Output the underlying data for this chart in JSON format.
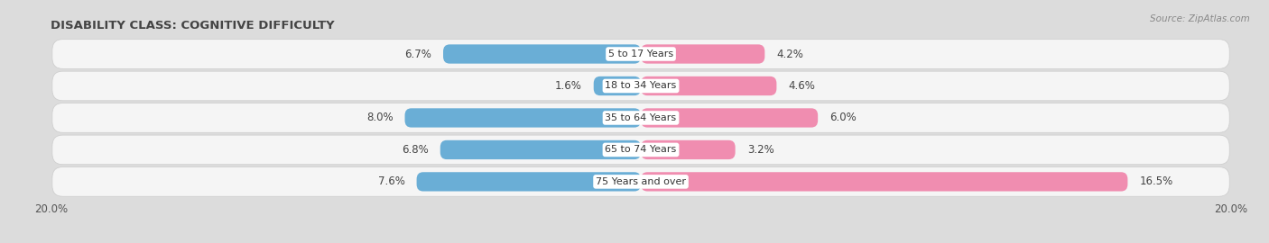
{
  "title": "DISABILITY CLASS: COGNITIVE DIFFICULTY",
  "source": "Source: ZipAtlas.com",
  "categories": [
    "5 to 17 Years",
    "18 to 34 Years",
    "35 to 64 Years",
    "65 to 74 Years",
    "75 Years and over"
  ],
  "male_values": [
    6.7,
    1.6,
    8.0,
    6.8,
    7.6
  ],
  "female_values": [
    4.2,
    4.6,
    6.0,
    3.2,
    16.5
  ],
  "max_val": 20.0,
  "male_color": "#6aaed6",
  "female_color": "#f08db0",
  "male_color_light": "#a8cfe4",
  "bg_color": "#dcdcdc",
  "row_bg_color": "#f5f5f5",
  "label_color": "#333333",
  "title_color": "#444444",
  "legend_male_color": "#6aaed6",
  "legend_female_color": "#f08db0",
  "value_label_fontsize": 8.5,
  "cat_label_fontsize": 8.0,
  "title_fontsize": 9.5,
  "source_fontsize": 7.5
}
